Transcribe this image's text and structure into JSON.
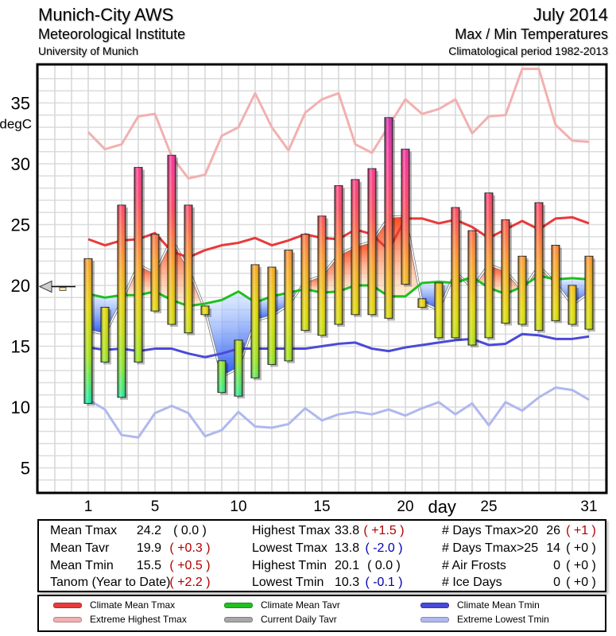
{
  "header": {
    "station": "Munich-City AWS",
    "institute": "Meteorological Institute",
    "university": "University of Munich",
    "month": "July 2014",
    "subject": "Max / Min Temperatures",
    "period": "Climatological period 1982-2013"
  },
  "colors": {
    "climate_mean_tmax": "#e83a3a",
    "extreme_highest_tmax": "#f2b0b0",
    "climate_mean_tavr": "#20c020",
    "current_daily_tavr": "#a8a8a8",
    "climate_mean_tmin": "#4a4ad8",
    "extreme_lowest_tmin": "#b0b8ee"
  },
  "chart_data": {
    "type": "bar",
    "title": "Max / Min Temperatures",
    "xlabel": "day",
    "ylabel": "degC",
    "xlim": [
      -2,
      32
    ],
    "ylim": [
      3,
      38
    ],
    "x_ticks": [
      "1",
      "5",
      "10",
      "15",
      "20",
      "25",
      "31"
    ],
    "x_tick_values": [
      1,
      5,
      10,
      15,
      20,
      25,
      31
    ],
    "y_ticks": [
      "5",
      "10",
      "15",
      "20",
      "25",
      "30",
      "35"
    ],
    "y_tick_values": [
      5,
      10,
      15,
      20,
      25,
      30,
      35
    ],
    "grid": true,
    "days": [
      1,
      2,
      3,
      4,
      5,
      6,
      7,
      8,
      9,
      10,
      11,
      12,
      13,
      14,
      15,
      16,
      17,
      18,
      19,
      20,
      21,
      22,
      23,
      24,
      25,
      26,
      27,
      28,
      29,
      30,
      31
    ],
    "tmax": [
      22.2,
      18.2,
      26.6,
      29.7,
      24.2,
      30.7,
      26.6,
      18.3,
      13.8,
      15.5,
      21.7,
      21.5,
      22.9,
      24.2,
      25.7,
      28.2,
      28.7,
      29.6,
      33.8,
      31.2,
      18.9,
      20.2,
      26.4,
      24.5,
      27.6,
      25.4,
      22.4,
      26.8,
      23.3,
      20.0,
      22.4
    ],
    "tmin": [
      10.3,
      13.7,
      10.8,
      13.7,
      17.9,
      16.8,
      16.1,
      17.6,
      11.2,
      10.9,
      12.4,
      13.5,
      13.8,
      16.3,
      15.9,
      16.8,
      17.6,
      17.6,
      17.3,
      20.1,
      18.2,
      15.7,
      15.7,
      15.1,
      15.7,
      16.9,
      16.8,
      16.3,
      17.1,
      16.8,
      16.4
    ],
    "series": [
      {
        "name": "Climate Mean Tmax",
        "values": [
          23.8,
          23.3,
          23.7,
          23.8,
          24.3,
          22.8,
          22.3,
          22.9,
          23.3,
          23.5,
          23.9,
          23.3,
          23.7,
          24.2,
          23.9,
          23.8,
          24.6,
          24.2,
          22.9,
          25.5,
          25.5,
          25.1,
          25.4,
          24.8,
          23.9,
          24.6,
          25.3,
          24.6,
          25.5,
          25.6,
          25.1
        ]
      },
      {
        "name": "Extreme Highest Tmax",
        "values": [
          32.6,
          31.2,
          31.6,
          33.9,
          34.1,
          30.6,
          28.8,
          29.1,
          32.3,
          33.0,
          35.8,
          33.0,
          31.1,
          34.2,
          35.3,
          35.8,
          31.6,
          30.9,
          33.1,
          35.3,
          34.1,
          34.5,
          35.3,
          32.5,
          33.9,
          34.0,
          37.8,
          37.8,
          33.2,
          31.9,
          31.8
        ]
      },
      {
        "name": "Climate Mean Tavr",
        "values": [
          19.3,
          19.0,
          19.2,
          19.2,
          19.5,
          18.8,
          18.3,
          18.5,
          18.8,
          19.5,
          18.6,
          19.1,
          19.4,
          19.7,
          19.4,
          19.5,
          20.0,
          20.0,
          19.1,
          19.1,
          20.2,
          20.3,
          20.2,
          20.7,
          19.8,
          19.3,
          19.9,
          20.8,
          20.5,
          20.6,
          20.5
        ]
      },
      {
        "name": "Current Daily Tavr",
        "values": [
          16.3,
          16.0,
          18.7,
          21.7,
          21.0,
          23.8,
          21.4,
          18.0,
          12.5,
          13.2,
          17.1,
          17.5,
          18.4,
          20.3,
          20.8,
          22.5,
          23.2,
          23.6,
          25.6,
          25.7,
          18.6,
          18.0,
          21.1,
          19.8,
          21.7,
          21.2,
          19.6,
          21.6,
          20.2,
          18.4,
          19.4
        ]
      },
      {
        "name": "Climate Mean Tmin",
        "values": [
          14.9,
          14.7,
          14.8,
          14.6,
          14.8,
          14.8,
          14.4,
          14.1,
          14.4,
          14.8,
          14.8,
          14.8,
          14.8,
          14.8,
          15.0,
          15.2,
          15.3,
          14.8,
          14.6,
          14.9,
          15.1,
          15.3,
          15.5,
          15.6,
          15.1,
          15.2,
          16.0,
          15.9,
          15.6,
          15.6,
          15.8
        ]
      },
      {
        "name": "Extreme Lowest Tmin",
        "values": [
          10.6,
          9.8,
          7.7,
          7.5,
          9.5,
          10.1,
          9.5,
          7.6,
          8.1,
          9.6,
          8.4,
          8.3,
          8.6,
          9.9,
          8.9,
          9.4,
          9.6,
          9.4,
          9.8,
          9.3,
          9.9,
          10.4,
          9.4,
          10.3,
          8.5,
          10.4,
          9.7,
          10.8,
          11.6,
          11.4,
          10.6
        ]
      }
    ],
    "marker": {
      "label": "",
      "value": 19.9
    }
  },
  "stats": {
    "col1": [
      {
        "label": "Mean Tmax",
        "value": "24.2",
        "anom": "( 0.0 )",
        "tone": "neutral"
      },
      {
        "label": "Mean Tavr",
        "value": "19.9",
        "anom": "( +0.3 )",
        "tone": "red"
      },
      {
        "label": "Mean Tmin",
        "value": "15.5",
        "anom": "( +0.5 )",
        "tone": "red"
      },
      {
        "label": "Tanom (Year to Date)",
        "value": "",
        "anom": "( +2.2 )",
        "tone": "red"
      }
    ],
    "col2": [
      {
        "label": "Highest Tmax",
        "value": "33.8",
        "anom": "( +1.5 )",
        "tone": "red"
      },
      {
        "label": "Lowest Tmax",
        "value": "13.8",
        "anom": "( -2.0 )",
        "tone": "blue"
      },
      {
        "label": "Highest Tmin",
        "value": "20.1",
        "anom": "( 0.0 )",
        "tone": "neutral"
      },
      {
        "label": "Lowest Tmin",
        "value": "10.3",
        "anom": "( -0.1 )",
        "tone": "blue"
      }
    ],
    "col3": [
      {
        "label": "# Days Tmax>20",
        "value": "26",
        "anom": "( +1 )",
        "tone": "red"
      },
      {
        "label": "# Days Tmax>25",
        "value": "14",
        "anom": "( +0 )",
        "tone": "neutral"
      },
      {
        "label": "# Air Frosts",
        "value": "0",
        "anom": "( +0 )",
        "tone": "neutral"
      },
      {
        "label": "# Ice Days",
        "value": "0",
        "anom": "( +0 )",
        "tone": "neutral"
      }
    ]
  },
  "legend": [
    {
      "label": "Climate Mean Tmax",
      "color": "#e83a3a"
    },
    {
      "label": "Climate Mean Tavr",
      "color": "#20c020"
    },
    {
      "label": "Climate Mean Tmin",
      "color": "#4a4ad8"
    },
    {
      "label": "Extreme Highest Tmax",
      "color": "#f2b0b0"
    },
    {
      "label": "Current Daily Tavr",
      "color": "#a8a8a8"
    },
    {
      "label": "Extreme Lowest Tmin",
      "color": "#b0b8ee"
    }
  ]
}
